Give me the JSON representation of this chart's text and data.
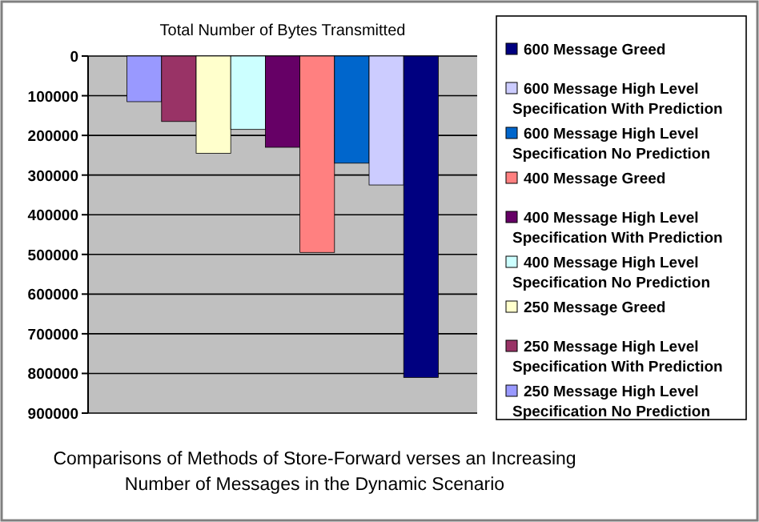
{
  "chart_data": {
    "type": "bar",
    "title": "Comparisons of Methods of Store-Forward verses an Increasing Number of Messages in the Dynamic Scenario",
    "categories": [
      "Total Number of Bytes Transmitted"
    ],
    "series": [
      {
        "name": "250 Message High Level Specification No Prediction",
        "color": "#9999ff",
        "values": [
          115000
        ]
      },
      {
        "name": "250 Message High Level Specification With Prediction",
        "color": "#993366",
        "values": [
          165000
        ]
      },
      {
        "name": "250 Message Greed",
        "color": "#ffffcc",
        "values": [
          245000
        ]
      },
      {
        "name": "400 Message High Level Specification No Prediction",
        "color": "#ccffff",
        "values": [
          185000
        ]
      },
      {
        "name": "400 Message High Level Specification With Prediction",
        "color": "#660066",
        "values": [
          230000
        ]
      },
      {
        "name": "400 Message Greed",
        "color": "#ff8080",
        "values": [
          495000
        ]
      },
      {
        "name": "600 Message High Level Specification No Prediction",
        "color": "#0066cc",
        "values": [
          270000
        ]
      },
      {
        "name": "600 Message High Level Specification With Prediction",
        "color": "#ccccff",
        "values": [
          325000
        ]
      },
      {
        "name": "600 Message Greed",
        "color": "#000080",
        "values": [
          810000
        ]
      }
    ],
    "ylim": [
      900000,
      0
    ],
    "yticks": [
      0,
      100000,
      200000,
      300000,
      400000,
      500000,
      600000,
      700000,
      800000,
      900000
    ],
    "grid": "y",
    "legend": "right"
  }
}
